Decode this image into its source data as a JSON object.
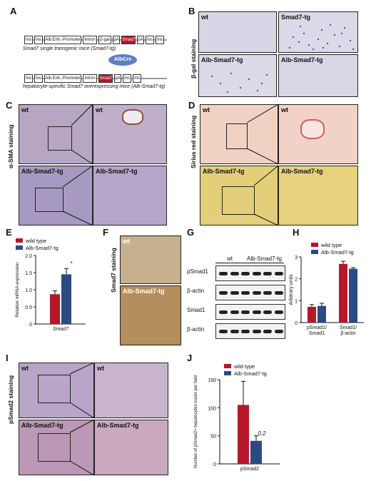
{
  "panels": {
    "A": "A",
    "B": "B",
    "C": "C",
    "D": "D",
    "E": "E",
    "F": "F",
    "G": "G",
    "H": "H",
    "I": "I",
    "J": "J"
  },
  "construct": {
    "top_boxes": [
      "Ins",
      "Ins",
      "Alb.Enh.-Promoter",
      "Intron",
      "β-gal",
      "pA",
      "Smad7",
      "pA",
      "Ins",
      "Ins"
    ],
    "top_caption": "Smad7 single transgenic mice (Smad7-tg)",
    "cre": "AlbCre",
    "bottom_boxes": [
      "Ins",
      "Ins",
      "Alb.Enh.-Promoter",
      "Intron",
      "Smad7",
      "pA",
      "Ins",
      "Ins"
    ],
    "bottom_caption": "hepatocyte-specific Smad7 overexpressing mice (Alb-Smad7-tg)"
  },
  "B": {
    "side": "β-gal staining",
    "tiles": [
      "wt",
      "Smad7-tg",
      "Alb-Smad7-tg",
      "Alb-Smad7-tg"
    ]
  },
  "C": {
    "side": "α-SMA staining",
    "tiles": [
      "wt",
      "wt",
      "Alb-Smad7-tg",
      "Alb-Smad7-tg"
    ]
  },
  "D": {
    "side": "Sirius red staining",
    "tiles": [
      "wt",
      "wt",
      "Alb-Smad7-tg",
      "Alb-Smad7-tg"
    ]
  },
  "F": {
    "side": "Smad7 staining",
    "tiles": [
      "wt",
      "Alb-Smad7-tg"
    ]
  },
  "I": {
    "side": "pSmad2 staining",
    "tiles": [
      "wt",
      "wt",
      "Alb-Smad7-tg",
      "Alb-Smad7-tg"
    ]
  },
  "G": {
    "groups": [
      "wt",
      "Alb-Smad7-tg"
    ],
    "rows": [
      "pSmad1",
      "β-actin",
      "Smad1",
      "β-actin"
    ]
  },
  "chart_data": [
    {
      "type": "bar",
      "panel": "E",
      "categories": [
        "Smad7"
      ],
      "series": [
        {
          "name": "wild type",
          "values": [
            0.87
          ],
          "error": [
            0.1
          ],
          "color": "#b5172b"
        },
        {
          "name": "Alb-Smad7-tg",
          "values": [
            1.45
          ],
          "error": [
            0.17
          ],
          "color": "#2c4a82"
        }
      ],
      "xlabel": "Smad7",
      "ylabel": "Relative mRNA expression",
      "ylim": [
        0,
        2.0
      ],
      "yticks": [
        "0",
        "0.5",
        "1.0",
        "1.5",
        "2.0"
      ],
      "annotations": [
        "*"
      ],
      "legend": "top-left"
    },
    {
      "type": "bar",
      "panel": "H",
      "categories": [
        "pSmad1/ Smad1",
        "Smad1/ β-actin"
      ],
      "series": [
        {
          "name": "wild type",
          "values": [
            0.72,
            2.68
          ],
          "error": [
            0.1,
            0.12
          ],
          "color": "#b5172b"
        },
        {
          "name": "Alb-Smad7-tg",
          "values": [
            0.76,
            2.46
          ],
          "error": [
            0.12,
            0.05
          ],
          "color": "#2c4a82"
        }
      ],
      "ylabel": "Arbitrary units",
      "ylim": [
        0,
        3
      ],
      "yticks": [
        "0",
        "1",
        "2",
        "3"
      ],
      "legend": "top-right"
    },
    {
      "type": "bar",
      "panel": "J",
      "categories": [
        "pSmad2"
      ],
      "series": [
        {
          "name": "wild type",
          "values": [
            105
          ],
          "error": [
            42
          ],
          "color": "#b5172b"
        },
        {
          "name": "Alb-Smad7-tg",
          "values": [
            41
          ],
          "error": [
            9
          ],
          "color": "#2c4a82"
        }
      ],
      "xlabel": "pSmad2",
      "ylabel": "Number of pSmad2+ hepatocytes nuclei per field",
      "ylim": [
        0,
        150
      ],
      "yticks": [
        "0",
        "50",
        "100",
        "150"
      ],
      "annotations": [
        "0.2"
      ],
      "legend": "top-left"
    }
  ]
}
